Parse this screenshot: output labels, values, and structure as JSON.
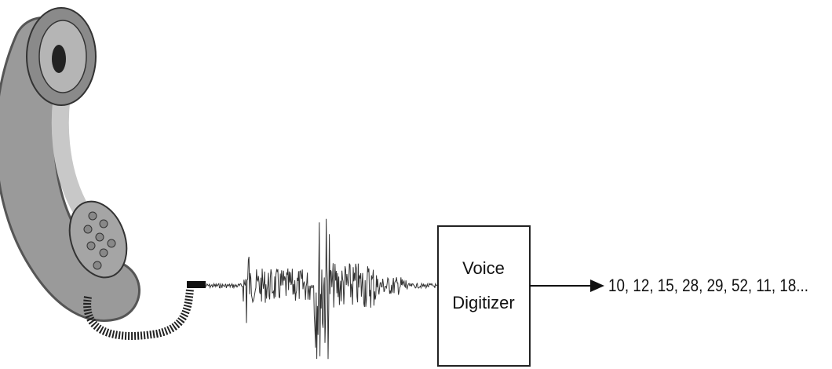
{
  "box": {
    "label_lines": [
      "Voice",
      "Digitizer"
    ]
  },
  "output": {
    "label": "10, 12, 15, 28, 29, 52, 11, 18..."
  }
}
